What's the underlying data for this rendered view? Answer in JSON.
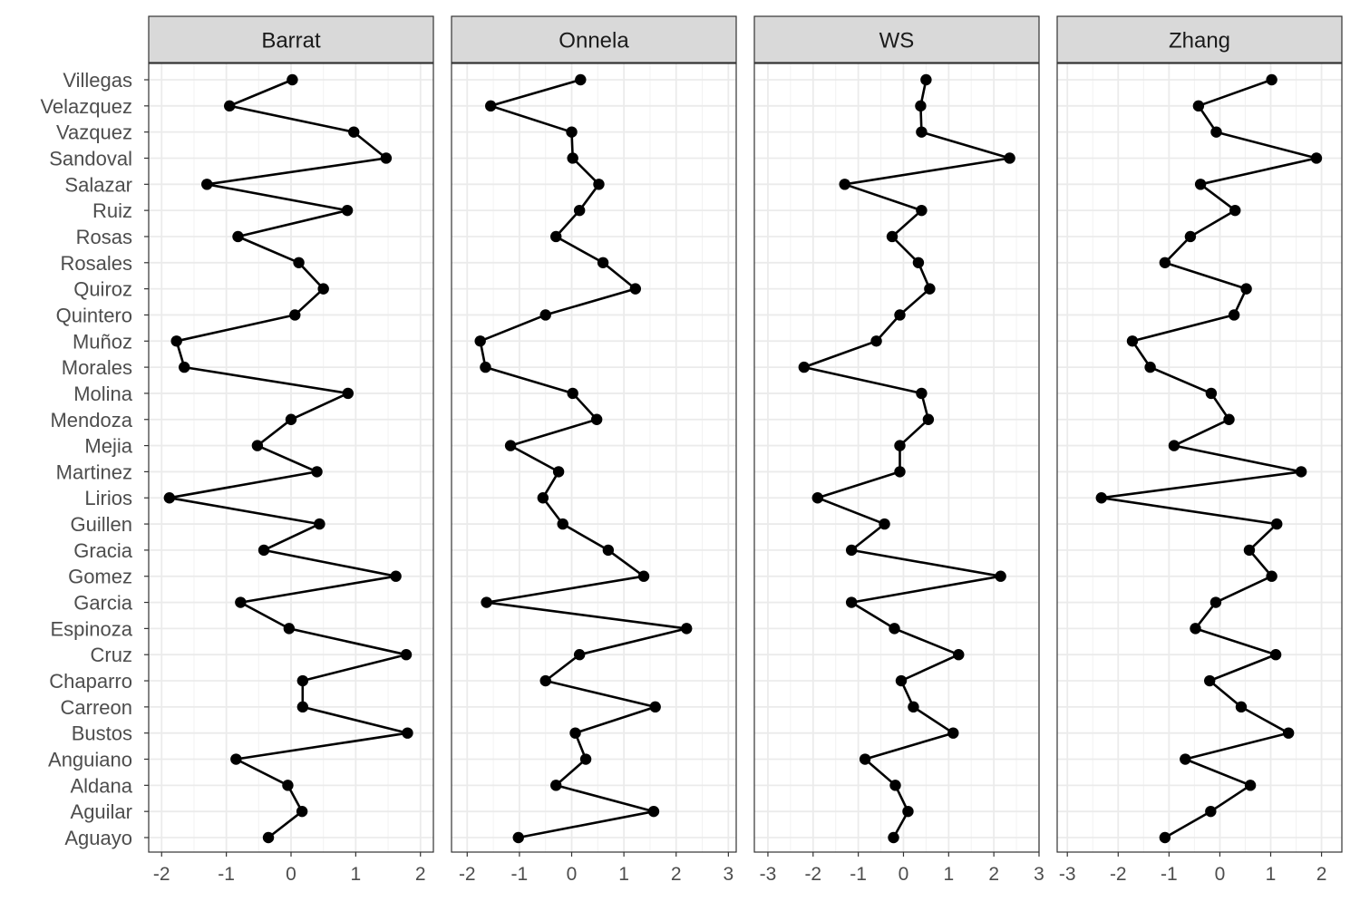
{
  "chart_data": {
    "type": "line",
    "categories": [
      "Aguayo",
      "Aguilar",
      "Aldana",
      "Anguiano",
      "Bustos",
      "Carreon",
      "Chaparro",
      "Cruz",
      "Espinoza",
      "Garcia",
      "Gomez",
      "Gracia",
      "Guillen",
      "Lirios",
      "Martinez",
      "Mejia",
      "Mendoza",
      "Molina",
      "Morales",
      "Muñoz",
      "Quintero",
      "Quiroz",
      "Rosales",
      "Rosas",
      "Ruiz",
      "Salazar",
      "Sandoval",
      "Vazquez",
      "Velazquez",
      "Villegas"
    ],
    "grid": true,
    "panels": [
      {
        "name": "Barrat",
        "xlim": [
          -2.2,
          2.2
        ],
        "xticks": [
          -2,
          -1,
          0,
          1,
          2
        ],
        "values": [
          -0.35,
          0.17,
          -0.05,
          -0.85,
          1.8,
          0.18,
          0.18,
          1.78,
          -0.03,
          -0.78,
          1.62,
          -0.42,
          0.44,
          -1.88,
          0.4,
          -0.52,
          0.0,
          0.88,
          -1.65,
          -1.77,
          0.06,
          0.5,
          0.12,
          -0.82,
          0.87,
          -1.3,
          1.47,
          0.97,
          -0.95,
          0.02
        ]
      },
      {
        "name": "Onnela",
        "xlim": [
          -2.3,
          3.15
        ],
        "xticks": [
          -2,
          -1,
          0,
          1,
          2,
          3
        ],
        "values": [
          -1.02,
          1.57,
          -0.3,
          0.27,
          0.07,
          1.6,
          -0.5,
          0.15,
          2.2,
          -1.63,
          1.38,
          0.7,
          -0.17,
          -0.55,
          -0.25,
          -1.17,
          0.48,
          0.02,
          -1.65,
          -1.75,
          -0.5,
          1.22,
          0.6,
          -0.3,
          0.15,
          0.52,
          0.02,
          0.0,
          -1.55,
          0.17
        ]
      },
      {
        "name": "WS",
        "xlim": [
          -3.3,
          3.0
        ],
        "xticks": [
          -3,
          -2,
          -1,
          0,
          1,
          2,
          3
        ],
        "values": [
          -0.22,
          0.1,
          -0.18,
          -0.85,
          1.1,
          0.22,
          -0.05,
          1.22,
          -0.2,
          -1.15,
          2.15,
          -1.15,
          -0.42,
          -1.9,
          -0.08,
          -0.08,
          0.55,
          0.4,
          -2.2,
          -0.6,
          -0.08,
          0.58,
          0.33,
          -0.25,
          0.4,
          -1.3,
          2.35,
          0.4,
          0.38,
          0.5
        ]
      },
      {
        "name": "Zhang",
        "xlim": [
          -3.2,
          2.4
        ],
        "xticks": [
          -3,
          -2,
          -1,
          0,
          1,
          2
        ],
        "values": [
          -1.08,
          -0.18,
          0.6,
          -0.68,
          1.35,
          0.42,
          -0.2,
          1.1,
          -0.48,
          -0.08,
          1.02,
          0.58,
          1.12,
          -2.33,
          1.6,
          -0.9,
          0.18,
          -0.17,
          -1.37,
          -1.72,
          0.28,
          0.52,
          -1.08,
          -0.58,
          0.3,
          -0.38,
          1.9,
          -0.07,
          -0.42,
          1.02
        ]
      }
    ]
  }
}
